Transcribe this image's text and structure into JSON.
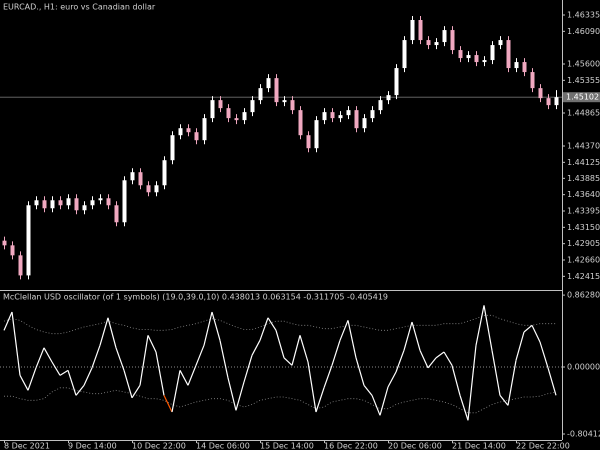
{
  "chart_data": [
    {
      "type": "candlestick",
      "title": "EURCAD., H1:  euro vs Canadian dollar",
      "categories": [
        "8 Dec 2021",
        null,
        null,
        null,
        null,
        null,
        null,
        null,
        "9 Dec 14:00",
        null,
        null,
        null,
        null,
        null,
        null,
        null,
        "10 Dec 22:00",
        null,
        null,
        null,
        null,
        null,
        null,
        null,
        "14 Dec 06:00",
        null,
        null,
        null,
        null,
        null,
        null,
        null,
        "15 Dec 14:00",
        null,
        null,
        null,
        null,
        null,
        null,
        null,
        "16 Dec 22:00",
        null,
        null,
        null,
        null,
        null,
        null,
        null,
        "20 Dec 06:00",
        null,
        null,
        null,
        null,
        null,
        null,
        null,
        "21 Dec 14:00",
        null,
        null,
        null,
        null,
        null,
        null,
        null,
        "22 Dec 22:00",
        null,
        null,
        null,
        null,
        null
      ],
      "open": [
        1.4295,
        1.4288,
        1.4273,
        1.42429,
        1.43481,
        1.43556,
        1.43436,
        1.43556,
        1.43481,
        1.43586,
        1.43406,
        1.43481,
        1.43556,
        1.43586,
        1.43481,
        1.43226,
        1.43856,
        1.43977,
        1.43781,
        1.43676,
        1.43781,
        1.44157,
        1.44532,
        1.44637,
        1.44577,
        1.44457,
        1.44788,
        1.45058,
        1.44938,
        1.44788,
        1.44758,
        1.44878,
        1.45058,
        1.45238,
        1.45388,
        1.45028,
        1.45058,
        1.44908,
        1.44532,
        1.44337,
        1.44758,
        1.44878,
        1.44788,
        1.44833,
        1.44908,
        1.44637,
        1.44788,
        1.44908,
        1.45058,
        1.45133,
        1.45539,
        1.45959,
        1.4626,
        1.45959,
        1.45884,
        1.45929,
        1.46109,
        1.45809,
        1.45689,
        1.45734,
        1.45629,
        1.45659,
        1.45884,
        1.45959,
        1.45539,
        1.45629,
        1.45479,
        1.45238,
        1.45088,
        1.44983
      ],
      "high": [
        1.4301,
        1.4294,
        1.4279,
        1.43541,
        1.43616,
        1.43616,
        1.43616,
        1.43616,
        1.43646,
        1.43646,
        1.43541,
        1.43616,
        1.43646,
        1.43646,
        1.43541,
        1.43916,
        1.44037,
        1.44037,
        1.43841,
        1.43841,
        1.44217,
        1.44592,
        1.44697,
        1.44697,
        1.44637,
        1.44848,
        1.45118,
        1.45118,
        1.44998,
        1.44848,
        1.44938,
        1.45118,
        1.45298,
        1.45448,
        1.45448,
        1.45118,
        1.45118,
        1.44968,
        1.44592,
        1.44818,
        1.44938,
        1.44938,
        1.44893,
        1.44968,
        1.44968,
        1.44848,
        1.44968,
        1.45118,
        1.45193,
        1.45599,
        1.46019,
        1.4632,
        1.4632,
        1.46019,
        1.45989,
        1.46169,
        1.46169,
        1.45869,
        1.45794,
        1.45794,
        1.45719,
        1.45944,
        1.46019,
        1.46019,
        1.45689,
        1.45689,
        1.45539,
        1.45298,
        1.45148,
        1.45208
      ],
      "low": [
        1.4282,
        1.4267,
        1.42369,
        1.42369,
        1.43421,
        1.43376,
        1.43376,
        1.43421,
        1.43421,
        1.43346,
        1.43346,
        1.43421,
        1.43496,
        1.43421,
        1.43166,
        1.43166,
        1.43796,
        1.43721,
        1.43616,
        1.43616,
        1.43721,
        1.44097,
        1.44472,
        1.44517,
        1.44397,
        1.44397,
        1.44728,
        1.44878,
        1.44728,
        1.44698,
        1.44698,
        1.44818,
        1.44998,
        1.45178,
        1.44968,
        1.44968,
        1.44848,
        1.44472,
        1.44277,
        1.44277,
        1.44698,
        1.44728,
        1.44728,
        1.44773,
        1.44577,
        1.44577,
        1.44728,
        1.44848,
        1.44998,
        1.45073,
        1.45479,
        1.45899,
        1.45899,
        1.45824,
        1.45824,
        1.45869,
        1.45749,
        1.45629,
        1.45629,
        1.45569,
        1.45569,
        1.45599,
        1.45824,
        1.45479,
        1.45479,
        1.45419,
        1.45178,
        1.45028,
        1.44923,
        1.44923
      ],
      "close": [
        1.4288,
        1.4273,
        1.42429,
        1.43481,
        1.43556,
        1.43436,
        1.43556,
        1.43481,
        1.43586,
        1.43406,
        1.43481,
        1.43556,
        1.43586,
        1.43481,
        1.43226,
        1.43856,
        1.43977,
        1.43781,
        1.43676,
        1.43781,
        1.44157,
        1.44532,
        1.44637,
        1.44577,
        1.44457,
        1.44788,
        1.45058,
        1.44938,
        1.44788,
        1.44758,
        1.44878,
        1.45058,
        1.45238,
        1.45388,
        1.45028,
        1.45058,
        1.44908,
        1.44532,
        1.44337,
        1.44758,
        1.44878,
        1.44788,
        1.44833,
        1.44908,
        1.44637,
        1.44788,
        1.44908,
        1.45058,
        1.45133,
        1.45539,
        1.45959,
        1.4626,
        1.45959,
        1.45884,
        1.45929,
        1.46109,
        1.45809,
        1.45689,
        1.45734,
        1.45629,
        1.45659,
        1.45884,
        1.45959,
        1.45539,
        1.45629,
        1.45479,
        1.45238,
        1.45088,
        1.44983,
        1.45102
      ],
      "up_color": "#ffffff",
      "down_color": "#f0a8c0",
      "current_price": 1.45102,
      "ylim": [
        1.4221,
        1.4656
      ],
      "yticks": [
        1.46335,
        {
          "value": 1.4609,
          "label": "1.46090"
        },
        {
          "value": 1.456,
          "label": "1.45600"
        },
        1.45355,
        1.44865,
        {
          "value": 1.4437,
          "label": "1.44370"
        },
        1.44125,
        1.43885,
        {
          "value": 1.4364,
          "label": "1.43640"
        },
        1.43395,
        {
          "value": 1.4315,
          "label": "1.43150"
        },
        1.42905,
        {
          "value": 1.4266,
          "label": "1.42660"
        },
        1.42415
      ]
    },
    {
      "type": "line",
      "title": "McClellan USD oscillator (of 1 symbols) (19.0,39.0,10) 0.438013 0.063154 -0.311705 -0.405419",
      "values": [
        0.44,
        0.66,
        -0.1,
        -0.28,
        -0.01,
        0.23,
        0.06,
        -0.1,
        -0.04,
        -0.34,
        -0.22,
        -0.01,
        0.26,
        0.59,
        0.23,
        -0.04,
        -0.37,
        -0.22,
        0.38,
        0.18,
        -0.34,
        -0.54,
        -0.04,
        -0.22,
        0.02,
        0.26,
        0.66,
        0.32,
        -0.13,
        -0.52,
        -0.18,
        0.14,
        0.32,
        0.59,
        0.44,
        0.11,
        0.02,
        0.38,
        0.06,
        -0.54,
        -0.25,
        0.02,
        0.32,
        0.56,
        0.11,
        -0.22,
        -0.34,
        -0.58,
        -0.24,
        -0.06,
        0.2,
        0.54,
        0.2,
        -0.01,
        0.11,
        0.18,
        0.02,
        -0.34,
        -0.64,
        0.26,
        0.74,
        0.2,
        -0.34,
        -0.46,
        0.08,
        0.42,
        0.5,
        0.3,
        -0.01,
        -0.34
      ],
      "upper": [
        0.55,
        0.58,
        0.56,
        0.5,
        0.45,
        0.42,
        0.4,
        0.4,
        0.42,
        0.45,
        0.48,
        0.5,
        0.52,
        0.55,
        0.52,
        0.5,
        0.47,
        0.45,
        0.45,
        0.44,
        0.44,
        0.45,
        0.48,
        0.5,
        0.52,
        0.55,
        0.58,
        0.56,
        0.52,
        0.48,
        0.45,
        0.45,
        0.48,
        0.52,
        0.55,
        0.55,
        0.52,
        0.5,
        0.5,
        0.48,
        0.46,
        0.46,
        0.48,
        0.5,
        0.5,
        0.48,
        0.46,
        0.44,
        0.44,
        0.46,
        0.48,
        0.5,
        0.5,
        0.5,
        0.5,
        0.52,
        0.52,
        0.52,
        0.55,
        0.58,
        0.62,
        0.62,
        0.58,
        0.55,
        0.52,
        0.5,
        0.5,
        0.52,
        0.52,
        0.52
      ],
      "lower": [
        -0.35,
        -0.35,
        -0.38,
        -0.4,
        -0.4,
        -0.38,
        -0.3,
        -0.25,
        -0.25,
        -0.28,
        -0.3,
        -0.32,
        -0.32,
        -0.3,
        -0.28,
        -0.3,
        -0.32,
        -0.35,
        -0.38,
        -0.38,
        -0.4,
        -0.45,
        -0.48,
        -0.45,
        -0.42,
        -0.4,
        -0.38,
        -0.38,
        -0.4,
        -0.45,
        -0.48,
        -0.45,
        -0.4,
        -0.38,
        -0.36,
        -0.36,
        -0.38,
        -0.4,
        -0.45,
        -0.5,
        -0.48,
        -0.42,
        -0.4,
        -0.38,
        -0.38,
        -0.4,
        -0.45,
        -0.5,
        -0.5,
        -0.45,
        -0.42,
        -0.4,
        -0.38,
        -0.38,
        -0.4,
        -0.42,
        -0.45,
        -0.5,
        -0.55,
        -0.55,
        -0.5,
        -0.45,
        -0.42,
        -0.4,
        -0.38,
        -0.36,
        -0.36,
        -0.35,
        -0.32,
        -0.3
      ],
      "color": "#ffffff",
      "above_color": "#3fa35a",
      "below_color": "#ff5a00",
      "band_color": "#8a8a8a",
      "levels": [
        0
      ],
      "ylim": [
        -0.9,
        0.9
      ],
      "yticks": [
        0.862807,
        {
          "value": 0,
          "label": "0.000000"
        },
        -0.804125
      ]
    }
  ]
}
